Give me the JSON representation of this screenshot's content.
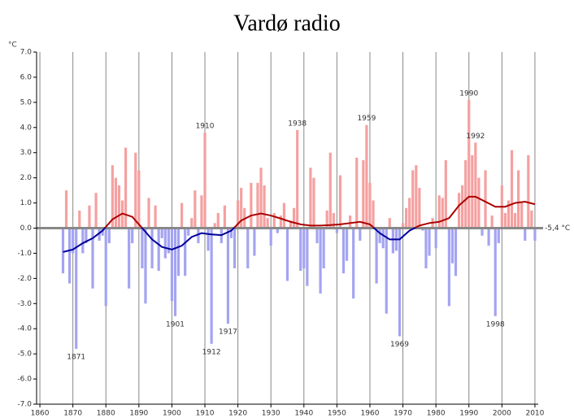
{
  "chart_data": {
    "type": "bar",
    "title": "Vardø radio",
    "y_unit": "°C",
    "reference_label": "-5,4 °C",
    "positive_color": "#f5a0a0",
    "negative_color": "#a4a4f2",
    "grid": true,
    "xlim": [
      1859,
      2011
    ],
    "xticks": [
      1860,
      1870,
      1880,
      1890,
      1900,
      1910,
      1920,
      1930,
      1940,
      1950,
      1960,
      1970,
      1980,
      1990,
      2000,
      2010
    ],
    "ylim": [
      -7,
      7
    ],
    "yticks": [
      {
        "value": 7,
        "label": "7.0"
      },
      {
        "value": 6,
        "label": "6.0"
      },
      {
        "value": 5,
        "label": "5.0"
      },
      {
        "value": 4,
        "label": "4.0"
      },
      {
        "value": 3,
        "label": "3.0"
      },
      {
        "value": 2,
        "label": "2.0"
      },
      {
        "value": 1,
        "label": "1.0"
      },
      {
        "value": 0,
        "label": "0.0"
      },
      {
        "value": -1,
        "label": "-1.0"
      },
      {
        "value": -2,
        "label": "-2.0"
      },
      {
        "value": -3,
        "label": "-3.0"
      },
      {
        "value": -4,
        "label": "-4.0"
      },
      {
        "value": -5,
        "label": "-5.0"
      },
      {
        "value": -6,
        "label": "-6.0"
      },
      {
        "value": -7,
        "label": "-7.0"
      }
    ],
    "x": [
      1867,
      1868,
      1869,
      1870,
      1871,
      1872,
      1873,
      1874,
      1875,
      1876,
      1877,
      1878,
      1879,
      1880,
      1881,
      1882,
      1883,
      1884,
      1885,
      1886,
      1887,
      1888,
      1889,
      1890,
      1891,
      1892,
      1893,
      1894,
      1895,
      1896,
      1897,
      1898,
      1899,
      1900,
      1901,
      1902,
      1903,
      1904,
      1905,
      1906,
      1907,
      1908,
      1909,
      1910,
      1911,
      1912,
      1913,
      1914,
      1915,
      1916,
      1917,
      1918,
      1919,
      1920,
      1921,
      1922,
      1923,
      1924,
      1925,
      1926,
      1927,
      1928,
      1929,
      1930,
      1931,
      1932,
      1933,
      1934,
      1935,
      1936,
      1937,
      1938,
      1939,
      1940,
      1941,
      1942,
      1943,
      1944,
      1945,
      1946,
      1947,
      1948,
      1949,
      1950,
      1951,
      1952,
      1953,
      1954,
      1955,
      1956,
      1957,
      1958,
      1959,
      1960,
      1961,
      1962,
      1963,
      1964,
      1965,
      1966,
      1967,
      1968,
      1969,
      1970,
      1971,
      1972,
      1973,
      1974,
      1975,
      1976,
      1977,
      1978,
      1979,
      1980,
      1981,
      1982,
      1983,
      1984,
      1985,
      1986,
      1987,
      1988,
      1989,
      1990,
      1991,
      1992,
      1993,
      1994,
      1995,
      1996,
      1997,
      1998,
      1999,
      2000,
      2001,
      2002,
      2003,
      2004,
      2005,
      2006,
      2007,
      2008,
      2009,
      2010
    ],
    "values": [
      -1.8,
      1.5,
      -2.2,
      -1.0,
      -4.8,
      0.7,
      -1.0,
      -0.6,
      0.9,
      -2.4,
      1.4,
      -0.5,
      -0.3,
      -3.1,
      -0.6,
      2.5,
      2.0,
      1.7,
      1.1,
      3.2,
      -2.4,
      -0.6,
      3.0,
      2.3,
      -1.6,
      -3.0,
      1.2,
      -1.6,
      0.9,
      -1.7,
      -0.4,
      -1.2,
      -1.0,
      -2.9,
      -3.5,
      -1.9,
      1.0,
      -1.9,
      -0.3,
      0.4,
      1.5,
      -0.6,
      1.3,
      3.8,
      -0.9,
      -4.6,
      0.2,
      0.6,
      -0.6,
      0.9,
      -3.8,
      -0.4,
      -1.6,
      1.1,
      1.6,
      0.8,
      -1.6,
      1.8,
      -1.1,
      1.8,
      2.4,
      1.7,
      0.4,
      -0.7,
      0.6,
      -0.2,
      0.5,
      1.0,
      -2.1,
      0.3,
      0.8,
      3.9,
      -1.7,
      -1.6,
      -2.3,
      2.4,
      2.0,
      -0.6,
      -2.6,
      -1.6,
      0.7,
      3.0,
      0.6,
      -0.2,
      2.1,
      -1.8,
      -1.3,
      0.5,
      -2.8,
      2.8,
      -0.5,
      2.7,
      4.1,
      1.8,
      1.1,
      -2.2,
      -0.6,
      -0.8,
      -3.4,
      0.4,
      -1.0,
      -0.9,
      -4.3,
      0.2,
      0.8,
      1.2,
      2.3,
      2.5,
      1.6,
      -0.1,
      -1.6,
      -1.1,
      0.4,
      -0.8,
      1.3,
      1.2,
      2.7,
      -3.1,
      -1.4,
      -1.9,
      1.4,
      1.7,
      2.7,
      5.1,
      2.9,
      3.4,
      2.0,
      -0.3,
      2.3,
      -0.7,
      0.5,
      -3.5,
      -0.6,
      1.7,
      0.6,
      1.1,
      3.1,
      0.6,
      2.3,
      1.0,
      -0.5,
      2.9,
      0.7,
      -0.5
    ],
    "smooth": {
      "positive_color": "#aa0000",
      "negative_color": "#000099",
      "x": [
        1867,
        1870,
        1873,
        1876,
        1879,
        1882,
        1885,
        1888,
        1891,
        1894,
        1897,
        1900,
        1903,
        1906,
        1909,
        1912,
        1915,
        1918,
        1921,
        1924,
        1927,
        1930,
        1933,
        1936,
        1939,
        1942,
        1945,
        1948,
        1951,
        1954,
        1957,
        1960,
        1963,
        1966,
        1969,
        1972,
        1975,
        1978,
        1981,
        1984,
        1987,
        1990,
        1992,
        1995,
        1998,
        2001,
        2004,
        2007,
        2010
      ],
      "values": [
        -0.95,
        -0.85,
        -0.6,
        -0.4,
        -0.1,
        0.35,
        0.58,
        0.45,
        0.0,
        -0.45,
        -0.75,
        -0.85,
        -0.7,
        -0.35,
        -0.2,
        -0.25,
        -0.28,
        -0.1,
        0.3,
        0.5,
        0.58,
        0.5,
        0.38,
        0.25,
        0.15,
        0.1,
        0.1,
        0.12,
        0.15,
        0.2,
        0.25,
        0.15,
        -0.2,
        -0.45,
        -0.45,
        -0.1,
        0.1,
        0.2,
        0.25,
        0.4,
        0.9,
        1.25,
        1.25,
        1.05,
        0.85,
        0.85,
        1.0,
        1.05,
        0.95
      ]
    },
    "annotations": [
      "1871",
      "1901",
      "1910",
      "1912",
      "1917",
      "1938",
      "1959",
      "1969",
      "1990",
      "1992",
      "1998"
    ]
  }
}
